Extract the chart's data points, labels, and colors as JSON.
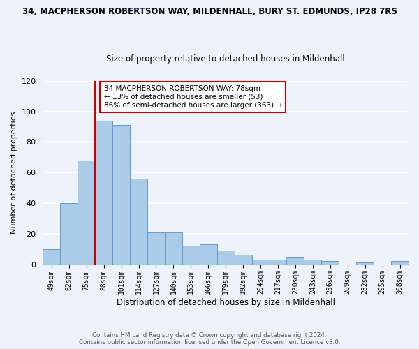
{
  "title": "34, MACPHERSON ROBERTSON WAY, MILDENHALL, BURY ST. EDMUNDS, IP28 7RS",
  "subtitle": "Size of property relative to detached houses in Mildenhall",
  "xlabel": "Distribution of detached houses by size in Mildenhall",
  "ylabel": "Number of detached properties",
  "bin_labels": [
    "49sqm",
    "62sqm",
    "75sqm",
    "88sqm",
    "101sqm",
    "114sqm",
    "127sqm",
    "140sqm",
    "153sqm",
    "166sqm",
    "179sqm",
    "192sqm",
    "204sqm",
    "217sqm",
    "230sqm",
    "243sqm",
    "256sqm",
    "269sqm",
    "282sqm",
    "295sqm",
    "308sqm"
  ],
  "bar_values": [
    10,
    40,
    68,
    94,
    91,
    56,
    21,
    21,
    12,
    13,
    9,
    6,
    3,
    3,
    5,
    3,
    2,
    0,
    1,
    0,
    2
  ],
  "bar_color": "#aacce8",
  "bar_edge_color": "#6699cc",
  "vline_color": "#cc0000",
  "ylim": [
    0,
    120
  ],
  "yticks": [
    0,
    20,
    40,
    60,
    80,
    100,
    120
  ],
  "annotation_title": "34 MACPHERSON ROBERTSON WAY: 78sqm",
  "annotation_line1": "← 13% of detached houses are smaller (53)",
  "annotation_line2": "86% of semi-detached houses are larger (363) →",
  "annotation_box_color": "#ffffff",
  "annotation_box_edge": "#cc0000",
  "footer_line1": "Contains HM Land Registry data © Crown copyright and database right 2024.",
  "footer_line2": "Contains public sector information licensed under the Open Government Licence v3.0.",
  "bg_color": "#eef2fa"
}
